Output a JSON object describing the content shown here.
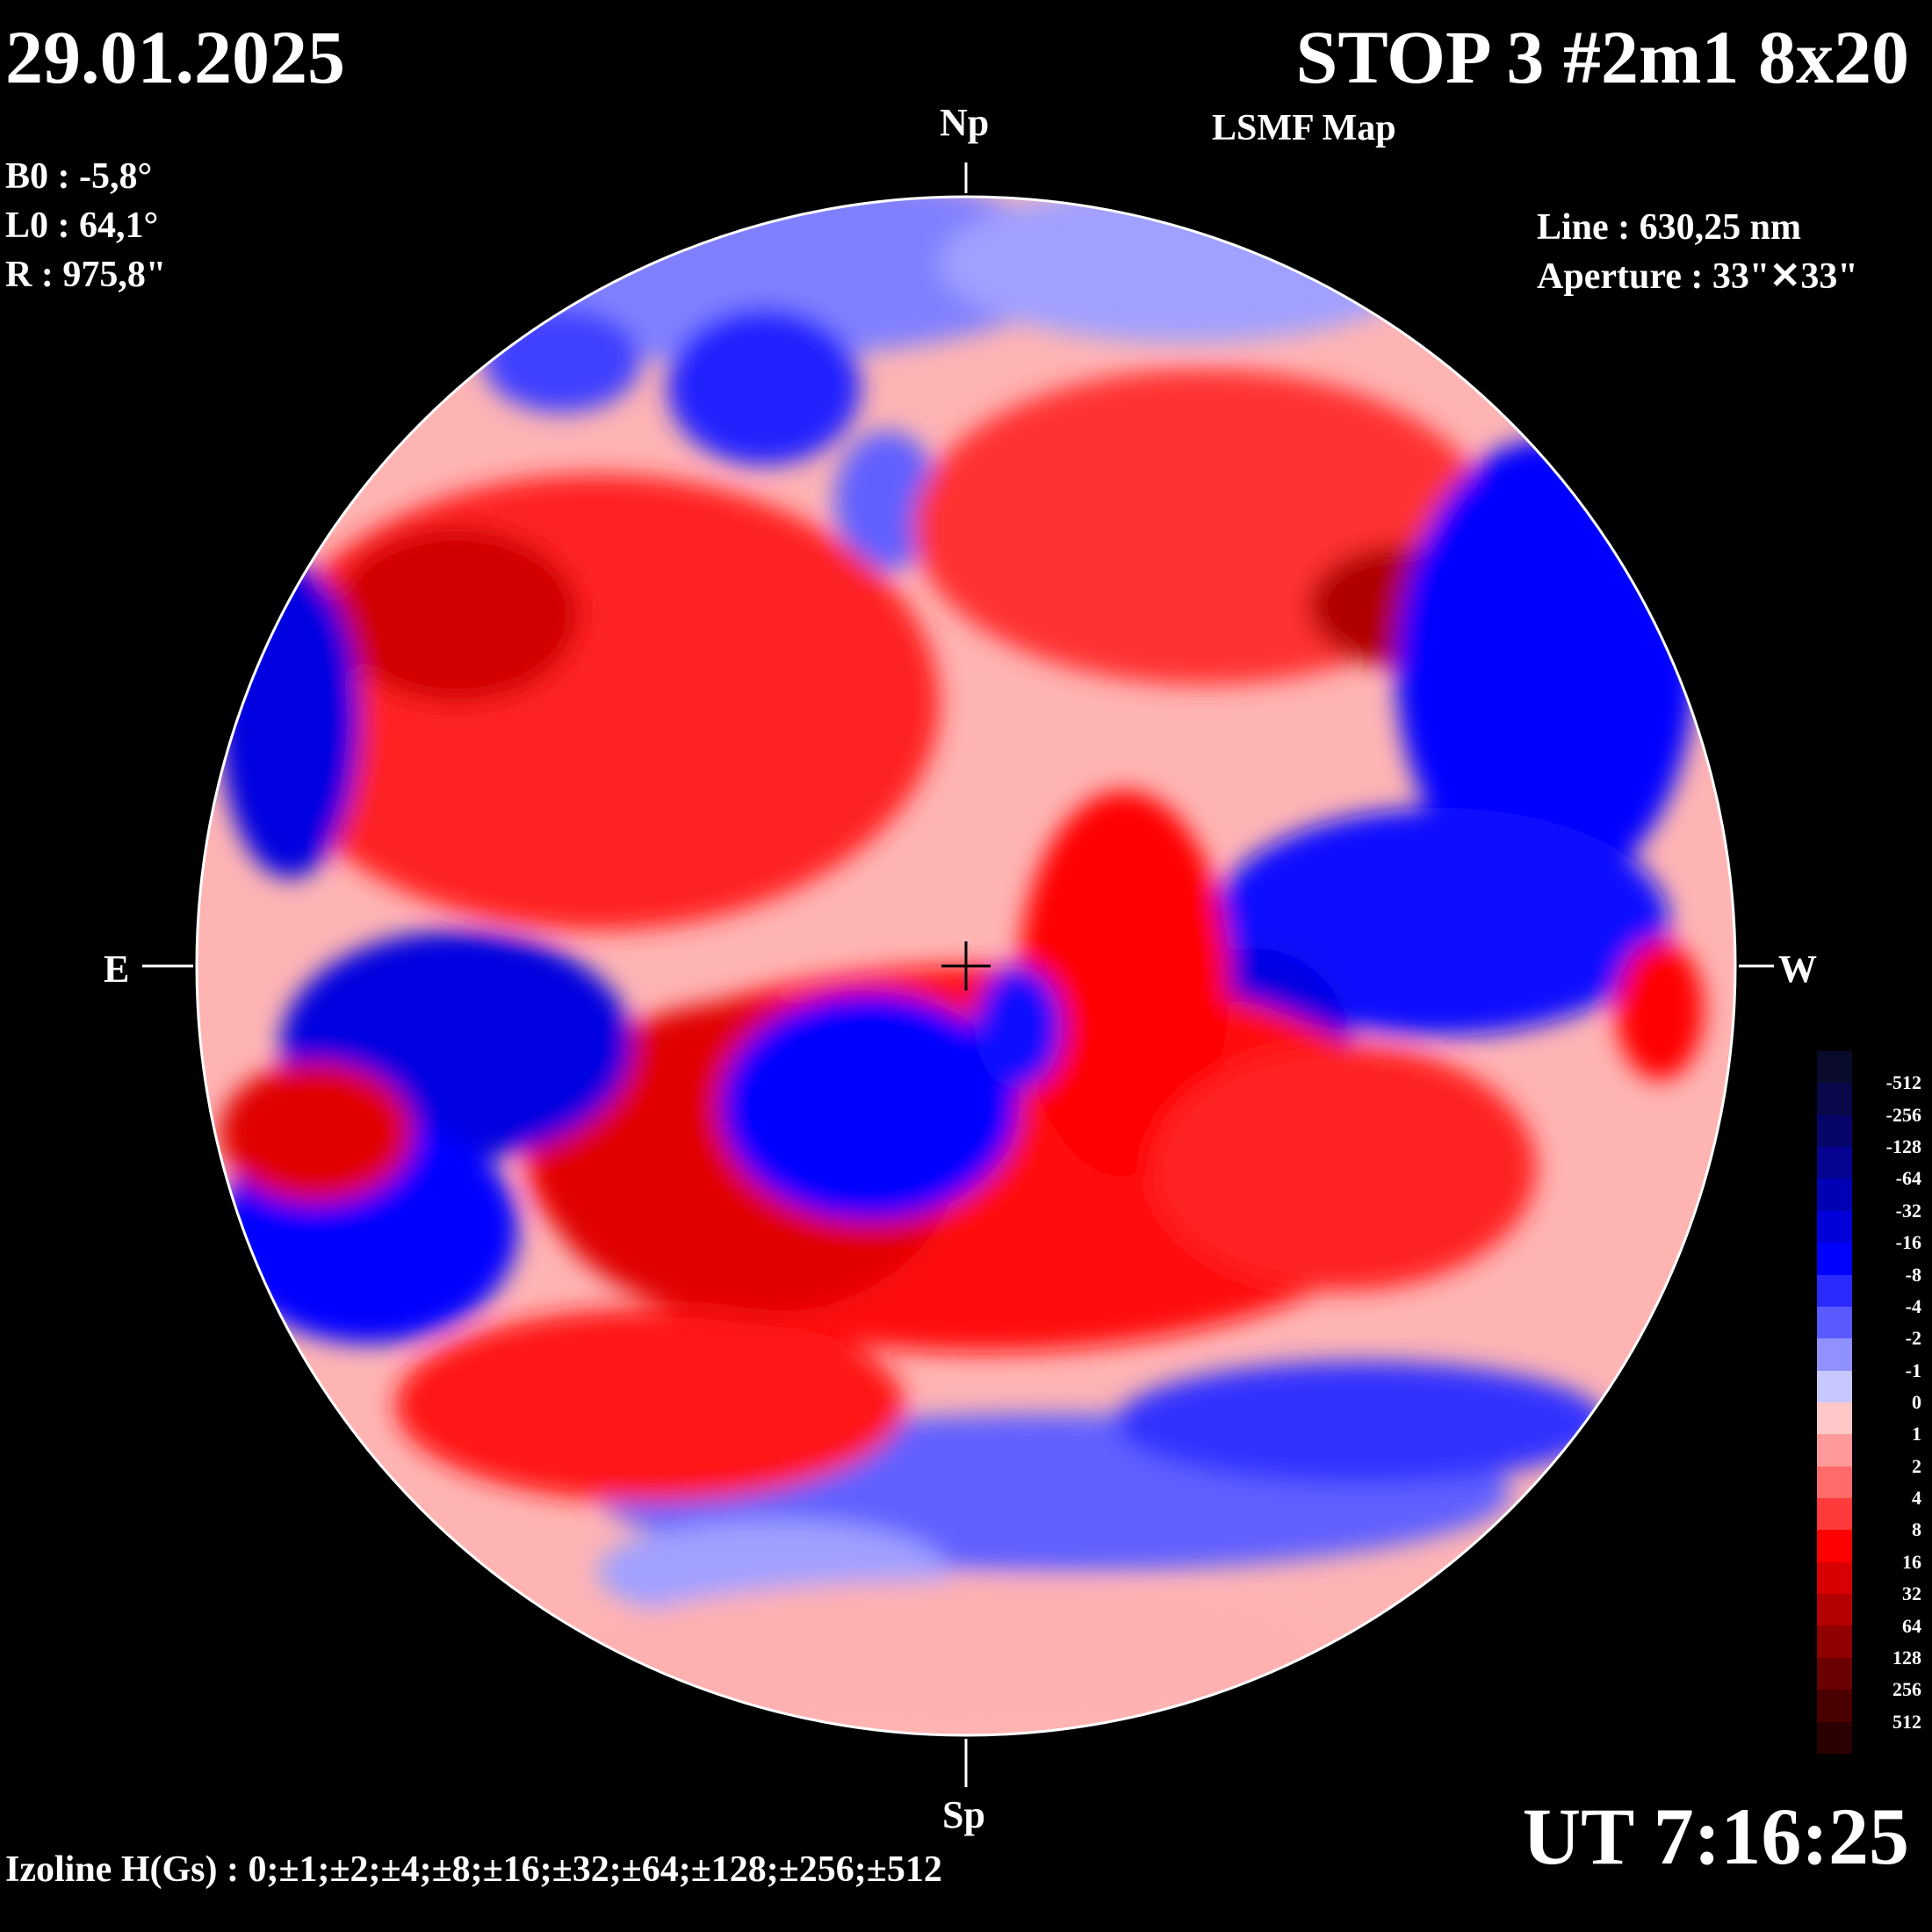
{
  "header": {
    "date": "29.01.2025",
    "title": "STOP 3 #2m1 8x20",
    "subtitle": "LSMF  Map"
  },
  "params": {
    "b0": "B0 : -5,8°",
    "l0": "L0 : 64,1°",
    "r": "R  : 975,8\"",
    "line": "Line :  630,25 nm",
    "aperture": "Aperture : 33\"✕33\""
  },
  "compass": {
    "north": "Np",
    "south": "Sp",
    "east": "E",
    "west": "W"
  },
  "time": "UT 7:16:25",
  "izoline": "Izoline H(Gs) : 0;±1;±2;±4;±8;±16;±32;±64;±128;±256;±512",
  "colorbar": {
    "labels": [
      "-512",
      "-256",
      "-128",
      "-64",
      "-32",
      "-16",
      "-8",
      "-4",
      "-2",
      "-1",
      "0",
      "1",
      "2",
      "4",
      "8",
      "16",
      "32",
      "64",
      "128",
      "256",
      "512"
    ],
    "colors": [
      "#0a0a2a",
      "#08084a",
      "#06066a",
      "#040490",
      "#0000b4",
      "#0000d8",
      "#0000ff",
      "#2a2aff",
      "#5a5aff",
      "#9090ff",
      "#c8c8ff",
      "#ffc8c8",
      "#ff9a9a",
      "#ff6a6a",
      "#ff3a3a",
      "#ff0000",
      "#d80000",
      "#b40000",
      "#900000",
      "#6a0000",
      "#4a0000",
      "#2a0000"
    ]
  },
  "colors": {
    "positive": "#ff0000",
    "negative": "#0000ff",
    "background": "#000000"
  }
}
